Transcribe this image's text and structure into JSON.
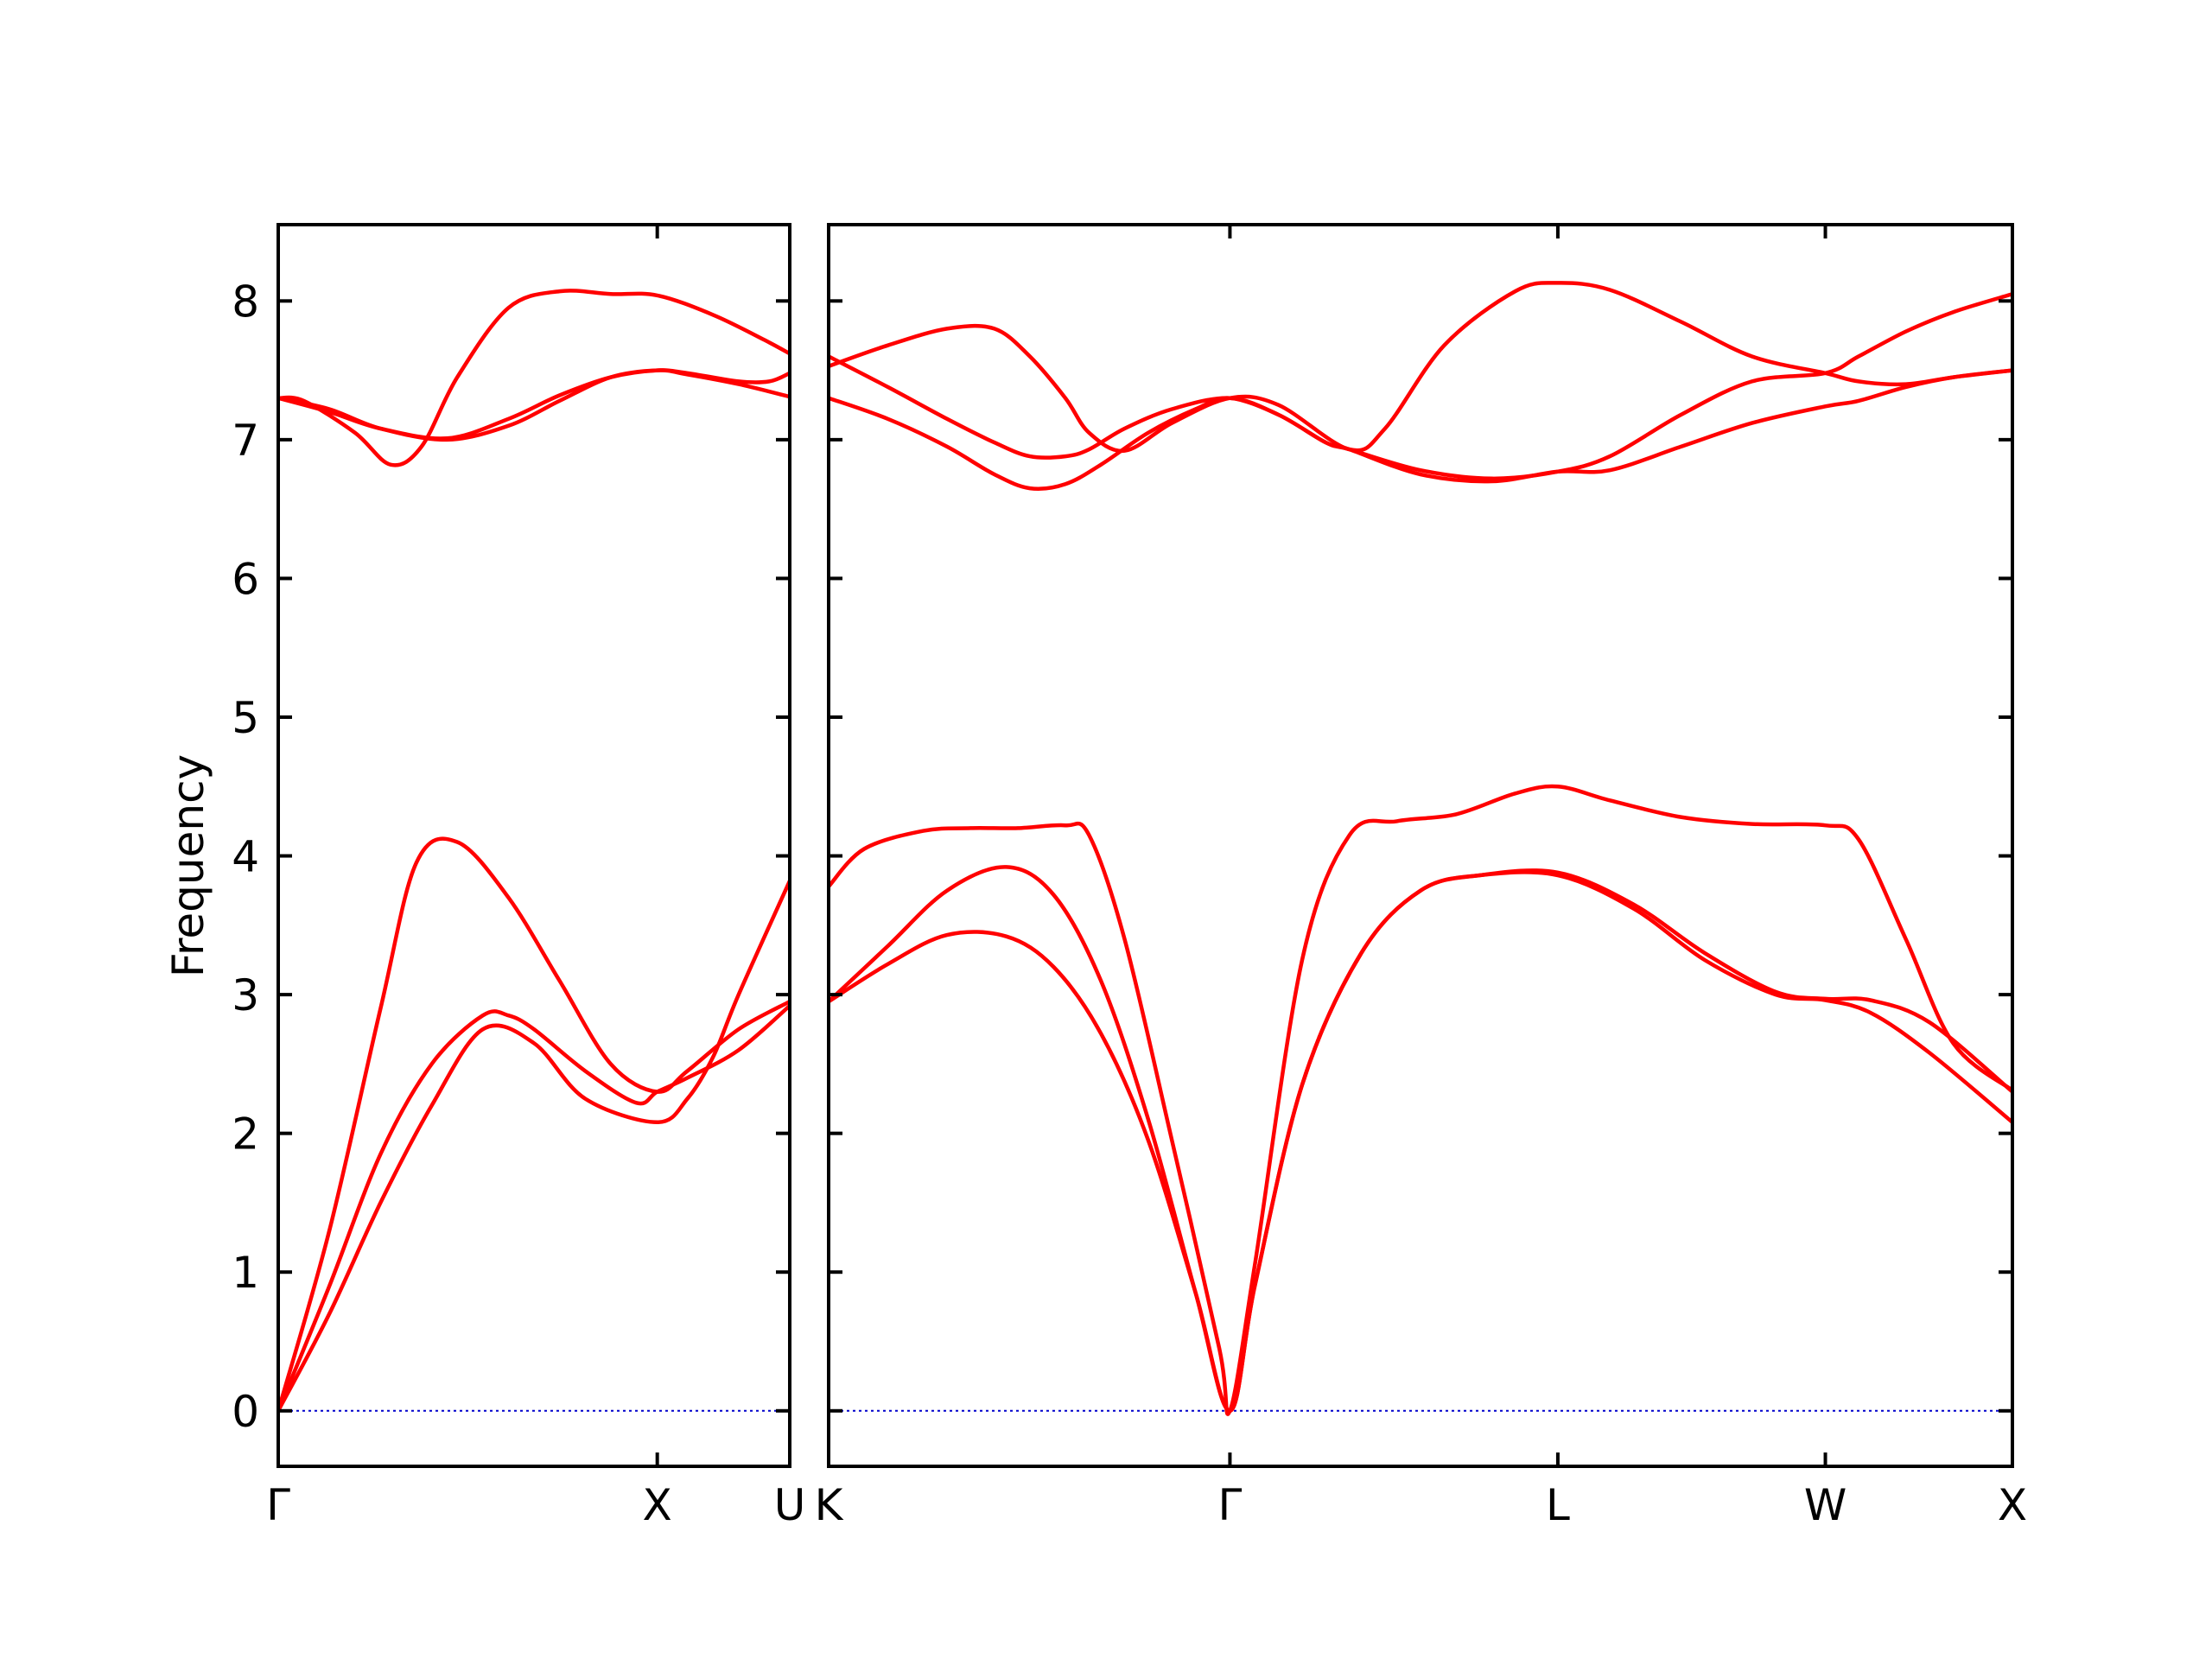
{
  "chart_data": {
    "type": "line",
    "title": "",
    "ylabel": "Frequency",
    "ylim": [
      -0.4,
      8.55
    ],
    "yticks": [
      0,
      1,
      2,
      3,
      4,
      5,
      6,
      7,
      8
    ],
    "grid": false,
    "colors": {
      "bands": "#ff0000",
      "zero_line": "#0000cc",
      "axes": "#000000"
    },
    "panels": [
      {
        "xlim": [
          0,
          1
        ],
        "xticks": [
          {
            "x": 0,
            "label": "Γ"
          },
          {
            "x": 0.741,
            "label": "X"
          },
          {
            "x": 1,
            "label": "U"
          }
        ],
        "series": [
          {
            "x": [
              0,
              0.1,
              0.2,
              0.27,
              0.35,
              0.45,
              0.55,
              0.65,
              0.741,
              0.8,
              0.9,
              1.0
            ],
            "y": [
              0,
              1.3,
              2.9,
              3.95,
              4.1,
              3.7,
              3.1,
              2.5,
              2.3,
              2.45,
              2.75,
              2.95
            ]
          },
          {
            "x": [
              0,
              0.1,
              0.2,
              0.3,
              0.4,
              0.45,
              0.5,
              0.6,
              0.7,
              0.741,
              0.8,
              0.9,
              1.0
            ],
            "y": [
              0,
              0.9,
              1.85,
              2.5,
              2.85,
              2.85,
              2.75,
              2.45,
              2.22,
              2.3,
              2.4,
              2.6,
              2.92
            ]
          },
          {
            "x": [
              0,
              0.1,
              0.2,
              0.3,
              0.4,
              0.5,
              0.6,
              0.741,
              0.8,
              0.85,
              0.9,
              1.0
            ],
            "y": [
              0,
              0.7,
              1.5,
              2.2,
              2.75,
              2.65,
              2.25,
              2.08,
              2.25,
              2.55,
              3.0,
              3.82
            ]
          },
          {
            "x": [
              0,
              0.05,
              0.15,
              0.22,
              0.28,
              0.35,
              0.45,
              0.55,
              0.65,
              0.741,
              0.85,
              0.95,
              1.0
            ],
            "y": [
              7.3,
              7.28,
              7.05,
              6.82,
              6.95,
              7.45,
              7.95,
              8.07,
              8.05,
              8.04,
              7.9,
              7.72,
              7.62
            ]
          },
          {
            "x": [
              0,
              0.1,
              0.2,
              0.33,
              0.45,
              0.55,
              0.65,
              0.741,
              0.8,
              0.9,
              0.96,
              1.0
            ],
            "y": [
              7.3,
              7.2,
              7.08,
              7.01,
              7.15,
              7.32,
              7.45,
              7.5,
              7.48,
              7.42,
              7.42,
              7.48
            ]
          },
          {
            "x": [
              0,
              0.1,
              0.2,
              0.33,
              0.45,
              0.55,
              0.65,
              0.741,
              0.8,
              0.9,
              1.0
            ],
            "y": [
              7.3,
              7.22,
              7.08,
              7.0,
              7.1,
              7.28,
              7.45,
              7.5,
              7.47,
              7.4,
              7.31
            ]
          }
        ]
      },
      {
        "xlim": [
          0,
          1
        ],
        "xticks": [
          {
            "x": 0,
            "label": "K"
          },
          {
            "x": 0.339,
            "label": "Γ"
          },
          {
            "x": 0.616,
            "label": "L"
          },
          {
            "x": 0.842,
            "label": "W"
          },
          {
            "x": 1,
            "label": "X"
          }
        ],
        "series": [
          {
            "x": [
              0,
              0.03,
              0.08,
              0.12,
              0.16,
              0.2,
              0.22,
              0.25,
              0.29,
              0.33,
              0.339,
              0.36,
              0.4,
              0.44,
              0.48,
              0.53,
              0.58,
              0.616,
              0.66,
              0.72,
              0.78,
              0.842,
              0.87,
              0.91,
              0.95,
              1.0
            ],
            "y": [
              3.78,
              4.05,
              4.18,
              4.2,
              4.2,
              4.22,
              4.15,
              3.4,
              1.95,
              0.45,
              0,
              1.05,
              3.25,
              4.15,
              4.25,
              4.3,
              4.45,
              4.5,
              4.4,
              4.28,
              4.23,
              4.22,
              4.12,
              3.4,
              2.65,
              2.31
            ]
          },
          {
            "x": [
              0,
              0.05,
              0.1,
              0.15,
              0.19,
              0.23,
              0.27,
              0.31,
              0.339,
              0.36,
              0.4,
              0.45,
              0.5,
              0.55,
              0.616,
              0.68,
              0.74,
              0.8,
              0.842,
              0.88,
              0.93,
              1.0
            ],
            "y": [
              2.95,
              3.35,
              3.75,
              3.92,
              3.72,
              3.1,
              2.1,
              0.85,
              0,
              0.9,
              2.35,
              3.3,
              3.75,
              3.86,
              3.88,
              3.65,
              3.3,
              3.02,
              2.97,
              2.96,
              2.8,
              2.3
            ]
          },
          {
            "x": [
              0,
              0.05,
              0.1,
              0.15,
              0.19,
              0.23,
              0.27,
              0.31,
              0.339,
              0.36,
              0.4,
              0.45,
              0.5,
              0.55,
              0.616,
              0.68,
              0.74,
              0.8,
              0.842,
              0.88,
              0.93,
              1.0
            ],
            "y": [
              2.95,
              3.22,
              3.43,
              3.42,
              3.2,
              2.72,
              1.95,
              0.85,
              0,
              0.9,
              2.35,
              3.3,
              3.75,
              3.86,
              3.86,
              3.62,
              3.25,
              3.0,
              2.96,
              2.87,
              2.58,
              2.08
            ]
          },
          {
            "x": [
              0,
              0.05,
              0.1,
              0.14,
              0.17,
              0.2,
              0.22,
              0.25,
              0.29,
              0.339,
              0.38,
              0.44,
              0.47,
              0.52,
              0.58,
              0.616,
              0.66,
              0.72,
              0.78,
              0.842,
              0.87,
              0.91,
              0.95,
              1.0
            ],
            "y": [
              7.53,
              7.68,
              7.8,
              7.8,
              7.6,
              7.3,
              7.05,
              6.92,
              7.12,
              7.3,
              7.25,
              6.93,
              7.08,
              7.68,
              8.07,
              8.13,
              8.08,
              7.85,
              7.6,
              7.48,
              7.42,
              7.4,
              7.45,
              7.5
            ]
          },
          {
            "x": [
              0,
              0.05,
              0.1,
              0.14,
              0.17,
              0.2,
              0.22,
              0.25,
              0.29,
              0.339,
              0.38,
              0.42,
              0.44,
              0.5,
              0.56,
              0.616,
              0.66,
              0.72,
              0.78,
              0.842,
              0.87,
              0.91,
              0.95,
              1.0
            ],
            "y": [
              7.6,
              7.38,
              7.15,
              6.98,
              6.88,
              6.88,
              6.93,
              7.08,
              7.22,
              7.3,
              7.18,
              6.98,
              6.93,
              6.78,
              6.72,
              6.77,
              6.88,
              7.18,
              7.42,
              7.48,
              7.6,
              7.78,
              7.92,
              8.05
            ]
          },
          {
            "x": [
              0,
              0.05,
              0.1,
              0.14,
              0.17,
              0.2,
              0.23,
              0.27,
              0.31,
              0.339,
              0.38,
              0.42,
              0.44,
              0.5,
              0.56,
              0.616,
              0.66,
              0.72,
              0.78,
              0.842,
              0.87,
              0.91,
              0.95,
              1.0
            ],
            "y": [
              7.3,
              7.15,
              6.95,
              6.75,
              6.65,
              6.68,
              6.82,
              7.05,
              7.22,
              7.3,
              7.18,
              6.98,
              6.93,
              6.75,
              6.7,
              6.77,
              6.78,
              6.95,
              7.12,
              7.24,
              7.28,
              7.38,
              7.45,
              7.5
            ]
          }
        ]
      }
    ]
  }
}
